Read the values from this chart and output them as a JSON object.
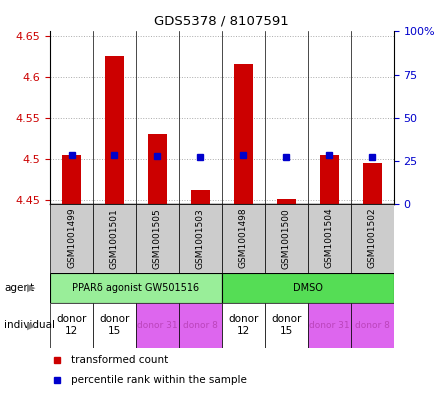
{
  "title": "GDS5378 / 8107591",
  "samples": [
    "GSM1001499",
    "GSM1001501",
    "GSM1001505",
    "GSM1001503",
    "GSM1001498",
    "GSM1001500",
    "GSM1001504",
    "GSM1001502"
  ],
  "transformed_count": [
    4.505,
    4.625,
    4.53,
    4.462,
    4.615,
    4.452,
    4.505,
    4.495
  ],
  "percentile_rank": [
    28.5,
    28.5,
    28.0,
    27.5,
    28.5,
    27.5,
    28.5,
    27.5
  ],
  "ylim": [
    4.445,
    4.655
  ],
  "y_ticks": [
    4.45,
    4.5,
    4.55,
    4.6,
    4.65
  ],
  "y_tick_labels": [
    "4.45",
    "4.5",
    "4.55",
    "4.6",
    "4.65"
  ],
  "y2_ticks": [
    0,
    25,
    50,
    75,
    100
  ],
  "y2_labels": [
    "0",
    "25",
    "50",
    "75",
    "100%"
  ],
  "bar_color": "#cc0000",
  "dot_color": "#0000cc",
  "bar_bottom": 4.445,
  "agent_colors": [
    "#99ee99",
    "#99ee99",
    "#99ee99",
    "#99ee99",
    "#55cc55",
    "#55cc55",
    "#55cc55",
    "#55cc55"
  ],
  "agent_label_1": "PPARδ agonist GW501516",
  "agent_label_2": "DMSO",
  "indiv_colors": [
    "#ffffff",
    "#ffffff",
    "#dd66ee",
    "#dd66ee",
    "#ffffff",
    "#ffffff",
    "#dd66ee",
    "#dd66ee"
  ],
  "indiv_labels": [
    "donor\n12",
    "donor\n15",
    "donor 31",
    "donor 8",
    "donor\n12",
    "donor\n15",
    "donor 31",
    "donor 8"
  ],
  "indiv_text_colors": [
    "#000000",
    "#000000",
    "#bb44bb",
    "#bb44bb",
    "#000000",
    "#000000",
    "#bb44bb",
    "#bb44bb"
  ],
  "indiv_fontsizes": [
    7.5,
    7.5,
    6.5,
    6.5,
    7.5,
    7.5,
    6.5,
    6.5
  ],
  "grid_color": "#aaaaaa",
  "tick_color_left": "#cc0000",
  "tick_color_right": "#0000cc",
  "bar_width": 0.45,
  "sample_bg_color": "#cccccc",
  "legend_red_label": "transformed count",
  "legend_blue_label": "percentile rank within the sample"
}
